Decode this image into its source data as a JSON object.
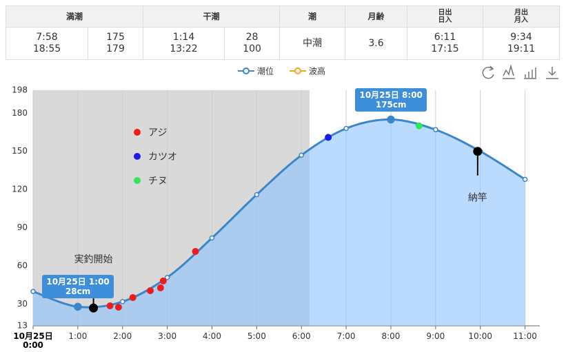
{
  "table": {
    "headers": [
      "満潮",
      "干潮",
      "潮",
      "月齢",
      "日出\n日入",
      "月出\n月入"
    ],
    "rows": [
      [
        "7:58\n18:55",
        "175\n179",
        "1:14\n13:22",
        "28\n100",
        "中潮",
        "3.6",
        "6:11\n17:15",
        "9:34\n19:11"
      ]
    ]
  },
  "chart_data": {
    "type": "line",
    "xlim": [
      0,
      11.33
    ],
    "ylim": [
      13,
      198
    ],
    "xticks": [
      {
        "value": 0,
        "label": "10月25日\n0:00"
      },
      {
        "value": 1,
        "label": "1:00"
      },
      {
        "value": 2,
        "label": "2:00"
      },
      {
        "value": 3,
        "label": "3:00"
      },
      {
        "value": 4,
        "label": "4:00"
      },
      {
        "value": 5,
        "label": "5:00"
      },
      {
        "value": 6,
        "label": "6:00"
      },
      {
        "value": 7,
        "label": "7:00"
      },
      {
        "value": 8,
        "label": "8:00"
      },
      {
        "value": 9,
        "label": "9:00"
      },
      {
        "value": 10,
        "label": "10:00"
      },
      {
        "value": 11,
        "label": "11:00"
      }
    ],
    "yticks": [
      13,
      30,
      60,
      90,
      120,
      150,
      180,
      198
    ],
    "grid": "x",
    "night_shade": {
      "x": [
        0,
        6.18
      ],
      "color": "#d9d9d9"
    },
    "series": [
      {
        "name": "潮位",
        "color": "#3a86c8",
        "x": [
          0,
          1,
          2,
          3,
          4,
          5,
          6,
          7,
          8,
          9,
          10,
          11
        ],
        "values": [
          40,
          28,
          32,
          51,
          82,
          116,
          147,
          168,
          175,
          167,
          150,
          128
        ]
      },
      {
        "name": "波高",
        "color": "#f5a623",
        "x": [],
        "values": []
      }
    ],
    "catches": [
      {
        "name": "アジ",
        "color": "#ee1c1c",
        "x": [
          1.72,
          1.91,
          2.23,
          2.62,
          2.85,
          2.91,
          3.63
        ],
        "values": [
          28.7,
          27.6,
          35.2,
          40.6,
          42.8,
          48.2,
          71.4
        ]
      },
      {
        "name": "カツオ",
        "color": "#1b1bf0",
        "x": [
          6.6
        ],
        "values": [
          161
        ]
      },
      {
        "name": "チヌ",
        "color": "#2ee85a",
        "x": [
          8.63
        ],
        "values": [
          170
        ]
      }
    ],
    "markers": [
      {
        "label": "実釣開始",
        "x": 1.35,
        "value": 27,
        "dir": "up"
      },
      {
        "label": "納竿",
        "x": 9.94,
        "value": 150,
        "dir": "down"
      }
    ],
    "tooltips": [
      {
        "x": 8,
        "title": "10月25日 8:00",
        "text": "175cm"
      },
      {
        "x": 1,
        "title": "10月25日 1:00",
        "text": "28cm"
      }
    ]
  }
}
